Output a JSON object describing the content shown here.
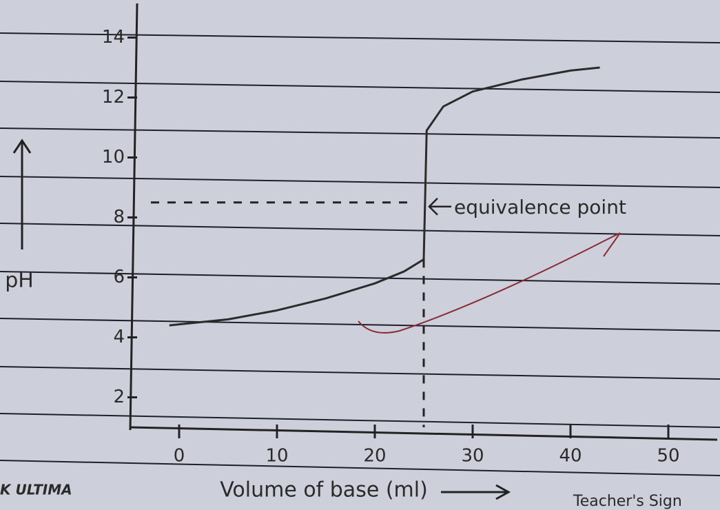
{
  "chart_data": {
    "type": "line",
    "ylabel": "pH",
    "xlabel": "Volume of base (ml)",
    "x": [
      -1,
      5,
      10,
      15,
      20,
      23,
      25,
      25.3,
      27,
      30,
      35,
      40,
      43
    ],
    "values": [
      4.4,
      4.6,
      4.9,
      5.3,
      5.8,
      6.2,
      6.6,
      10.9,
      11.7,
      12.2,
      12.6,
      12.9,
      13.0
    ],
    "color": "#2b2b2b",
    "xlim": [
      -5,
      55
    ],
    "ylim": [
      1,
      15
    ],
    "xticks": [
      0,
      10,
      20,
      30,
      40,
      50
    ],
    "yticks": [
      2,
      4,
      6,
      8,
      10,
      12,
      14
    ],
    "annotation": {
      "text": "equivalence point",
      "x": 25,
      "y": 8.5
    }
  },
  "footer": {
    "left": "K ULTIMA",
    "right": "Teacher's Sign"
  }
}
